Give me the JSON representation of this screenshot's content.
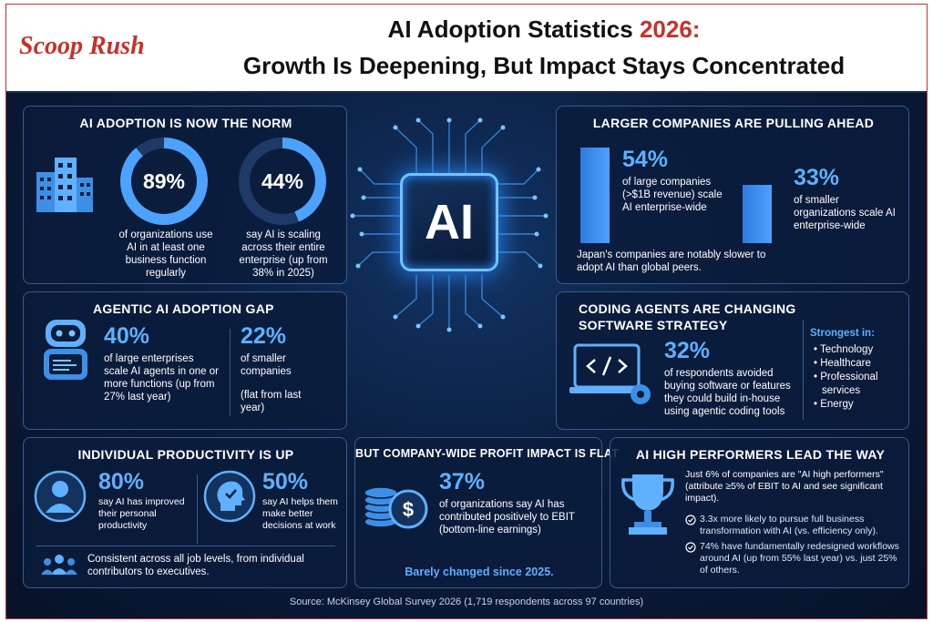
{
  "header": {
    "logo": "Scoop Rush",
    "title_line1_a": "AI Adoption Statistics ",
    "title_line1_year": "2026:",
    "title_line2": "Growth Is Deepening, But Impact Stays Concentrated"
  },
  "center": {
    "chip_label": "AI"
  },
  "adoption": {
    "title": "AI ADOPTION IS NOW THE NORM",
    "stat1": {
      "value": "89%",
      "fraction": 0.89,
      "text": "of organizations use AI in at least one business function regularly"
    },
    "stat2": {
      "value": "44%",
      "fraction": 0.44,
      "text": "say AI is scaling across their entire enterprise (up from 38% in 2025)"
    },
    "colors": {
      "ring": "#4da2ff",
      "track": "#1e3a66"
    }
  },
  "larger": {
    "title": "LARGER COMPANIES ARE PULLING AHEAD",
    "stat1": {
      "value": "54%",
      "fraction": 0.54,
      "text": "of large companies (>$1B revenue) scale AI enterprise-wide"
    },
    "stat2": {
      "value": "33%",
      "fraction": 0.33,
      "text": "of smaller organizations scale AI enterprise-wide"
    },
    "note": "Japan's companies are notably slower to adopt AI than global peers."
  },
  "agentic": {
    "title": "AGENTIC AI ADOPTION GAP",
    "stat1": {
      "value": "40%",
      "text": "of large enterprises scale AI agents in one or more functions (up from 27% last year)"
    },
    "stat2": {
      "value": "22%",
      "text": "of smaller companies",
      "sub": "(flat from last year)"
    }
  },
  "coding": {
    "title_line1": "CODING AGENTS ARE CHANGING",
    "title_line2": "SOFTWARE STRATEGY",
    "stat": {
      "value": "32%",
      "text": "of respondents avoided buying software or features they could build in-house using agentic coding tools"
    },
    "strongest_label": "Strongest in:",
    "sectors": [
      "• Technology",
      "• Healthcare",
      "• Professional",
      "  services",
      "• Energy"
    ]
  },
  "productivity": {
    "title": "INDIVIDUAL PRODUCTIVITY IS UP",
    "stat1": {
      "value": "80%",
      "text": "say AI has improved their personal productivity"
    },
    "stat2": {
      "value": "50%",
      "text": "say AI helps them make better decisions at work"
    },
    "note": "Consistent across all job levels, from individual contributors to executives."
  },
  "profit": {
    "title": "BUT COMPANY-WIDE PROFIT IMPACT IS FLAT",
    "stat": {
      "value": "37%",
      "text": "of organizations say AI has contributed positively to EBIT (bottom-line earnings)"
    },
    "note": "Barely changed since 2025."
  },
  "performers": {
    "title": "AI HIGH PERFORMERS LEAD THE WAY",
    "intro": "Just 6% of companies are \"AI high performers\" (attribute ≥5% of EBIT to AI and see significant impact).",
    "point1": "3.3x more likely to pursue full business transformation with AI (vs. efficiency only).",
    "point2": "74% have fundamentally redesigned workflows around AI (up from 55% last year) vs. just 25% of others."
  },
  "source": "Source: McKinsey Global Survey 2026 (1,719 respondents across 97 countries)"
}
